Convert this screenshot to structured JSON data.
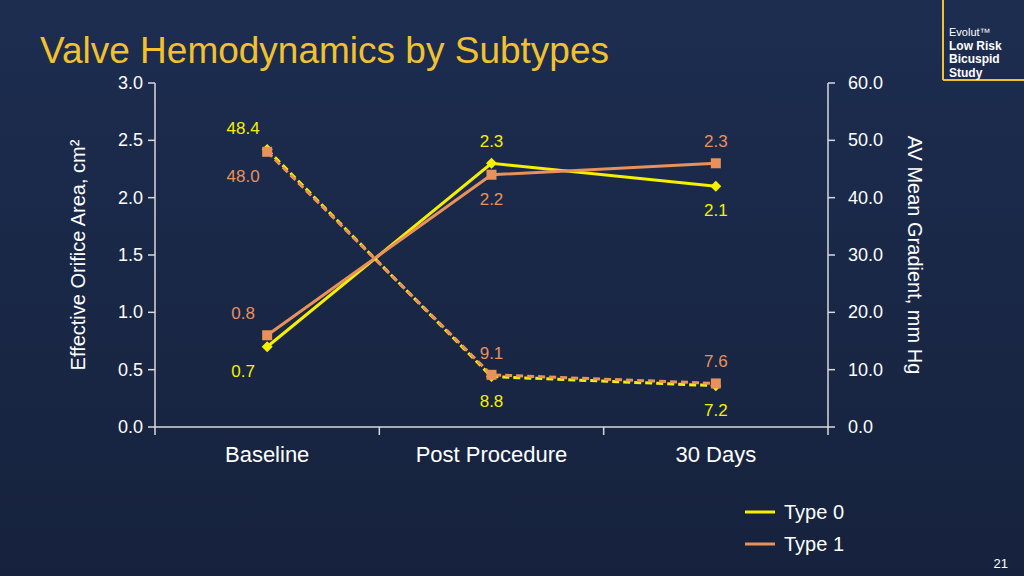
{
  "chart_data": {
    "type": "line",
    "title": "Valve Hemodynamics by Subtypes",
    "categories": [
      "Baseline",
      "Post Procedure",
      "30 Days"
    ],
    "y_label": "Effective Orifice Area, cm²",
    "y2_label": "AV Mean Gradient, mm Hg",
    "ylim": [
      0,
      3
    ],
    "yticks": [
      {
        "value": 0,
        "label": "0.0"
      },
      {
        "value": 0.5,
        "label": "0.5"
      },
      {
        "value": 1,
        "label": "1.0"
      },
      {
        "value": 1.5,
        "label": "1.5"
      },
      {
        "value": 2,
        "label": "2.0"
      },
      {
        "value": 2.5,
        "label": "2.5"
      },
      {
        "value": 3,
        "label": "3.0"
      }
    ],
    "y2lim": [
      0,
      60
    ],
    "y2ticks": [
      {
        "value": 0,
        "label": "0.0"
      },
      {
        "value": 10,
        "label": "10.0"
      },
      {
        "value": 20,
        "label": "20.0"
      },
      {
        "value": 30,
        "label": "30.0"
      },
      {
        "value": 40,
        "label": "40.0"
      },
      {
        "value": 50,
        "label": "50.0"
      },
      {
        "value": 60,
        "label": "60.0"
      }
    ],
    "grid": false,
    "data_labels": true,
    "legend": "bottom-right",
    "series": [
      {
        "name": "Type 0",
        "color": "#f5f000",
        "marker": "diamond",
        "line_style": "solid",
        "values": [
          0.7,
          2.3,
          2.1
        ]
      },
      {
        "name": "Type 1",
        "color": "#e8915a",
        "marker": "square",
        "line_style": "solid",
        "values": [
          0.8,
          2.2,
          2.3
        ]
      },
      {
        "name": "Type 0",
        "color": "#f5f000",
        "marker": "diamond",
        "line_style": "dashed",
        "axis": "y2",
        "values": [
          48.4,
          8.8,
          7.2
        ]
      },
      {
        "name": "Type 1",
        "color": "#e8915a",
        "marker": "square",
        "line_style": "dashed",
        "axis": "y2",
        "values": [
          48,
          9.1,
          7.6
        ],
        "value_labels": [
          "48.0",
          "9.1",
          "7.6"
        ]
      }
    ]
  },
  "logo": [
    "Evolut™",
    "Low Risk",
    "Bicuspid",
    "Study"
  ],
  "page_number": "21"
}
